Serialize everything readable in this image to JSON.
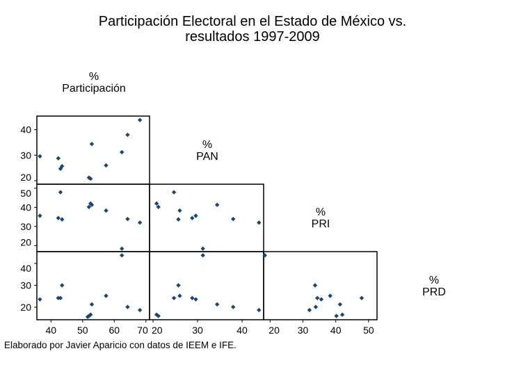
{
  "chart_data": {
    "type": "scatter",
    "subtype": "scatter-matrix-lower-half",
    "title": [
      "Participación Electoral en el Estado de México vs.",
      "resultados 1997-2009"
    ],
    "note": "Elaborado por Javier Aparicio con datos de IEEM e IFE.",
    "variables": [
      {
        "key": "part",
        "label": [
          "%",
          "Participación"
        ],
        "ticks": [
          40,
          50,
          60,
          70
        ]
      },
      {
        "key": "pan",
        "label": [
          "%",
          "PAN"
        ],
        "ticks": [
          20,
          30,
          40
        ]
      },
      {
        "key": "pri",
        "label": [
          "%",
          "PRI"
        ],
        "ticks": [
          20,
          30,
          40,
          50
        ]
      },
      {
        "key": "prd",
        "label": [
          "%",
          "PRD"
        ],
        "ticks": [
          20,
          30,
          40,
          50
        ]
      }
    ],
    "y_ticks": {
      "pan": [
        20,
        30,
        40
      ],
      "pri": [
        20,
        30,
        40,
        50
      ],
      "prd": [
        20,
        30,
        40
      ]
    },
    "x_ticks": {
      "part": [
        40,
        50,
        60,
        70
      ],
      "pan": [
        20,
        30,
        40
      ],
      "pri": [
        20,
        30,
        40,
        50
      ]
    },
    "observations": [
      {
        "part": 36.5,
        "pan": 29.6,
        "pri": 35.6,
        "prd": 23.6
      },
      {
        "part": 42.3,
        "pan": 28.8,
        "pri": 34.4,
        "prd": 24.2
      },
      {
        "part": 43.0,
        "pan": 24.7,
        "pri": 47.9,
        "prd": 24.2
      },
      {
        "part": 43.5,
        "pan": 25.7,
        "pri": 33.7,
        "prd": 30.0
      },
      {
        "part": 51.6,
        "pan": null,
        "pri": null,
        "prd": 15.6
      },
      {
        "part": 52.0,
        "pan": 21.2,
        "pri": 40.2,
        "prd": 16.0
      },
      {
        "part": 52.5,
        "pan": 20.8,
        "pri": 42.0,
        "prd": 16.6
      },
      {
        "part": 52.9,
        "pan": 34.4,
        "pri": 41.3,
        "prd": 21.3
      },
      {
        "part": 57.4,
        "pan": 26.0,
        "pri": 38.3,
        "prd": 25.2
      },
      {
        "part": 62.4,
        "pan": 31.2,
        "pri": 18.4,
        "prd": 43.7
      },
      {
        "part": 64.2,
        "pan": 38.0,
        "pri": 33.9,
        "prd": 20.1
      },
      {
        "part": 68.1,
        "pan": 43.8,
        "pri": 32.0,
        "prd": 18.7
      }
    ],
    "marker_color": "#1a476f",
    "grid": false,
    "legend": "none"
  }
}
